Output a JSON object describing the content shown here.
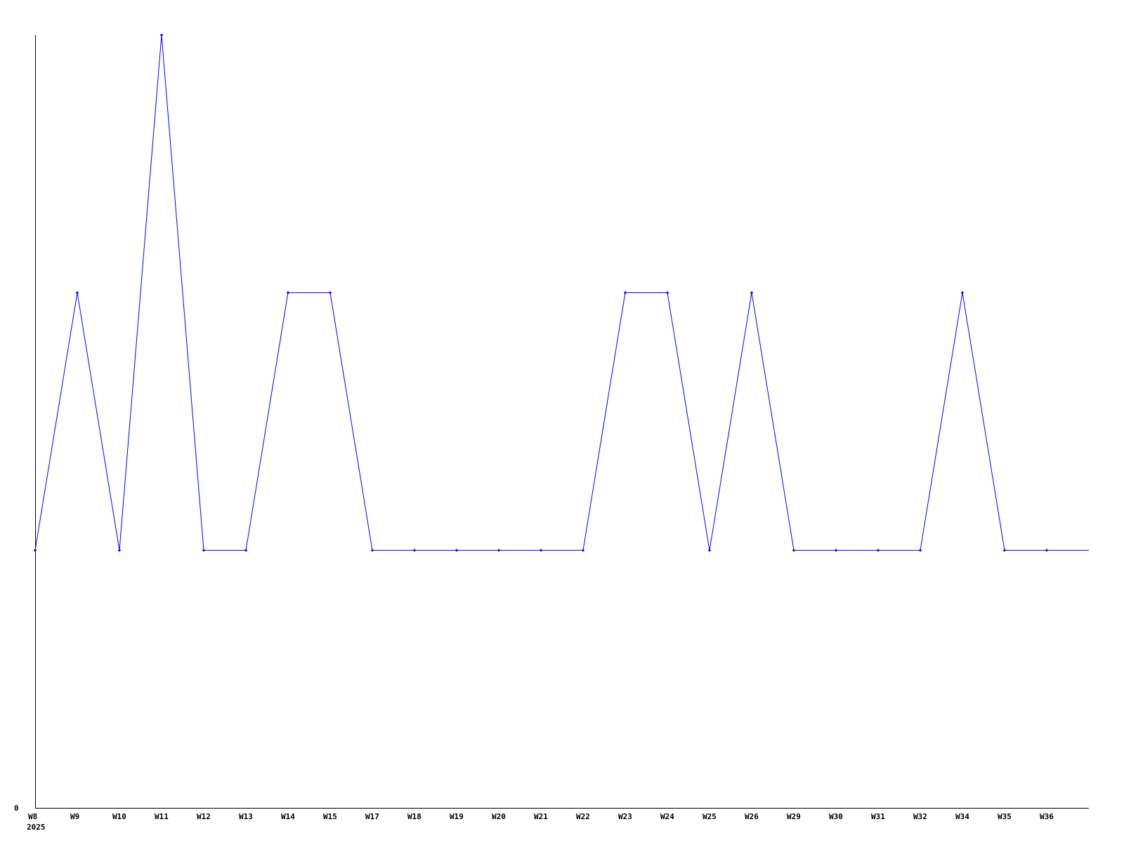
{
  "chart_data": {
    "type": "line",
    "categories": [
      "W8",
      "W9",
      "W10",
      "W11",
      "W12",
      "W13",
      "W14",
      "W15",
      "W17",
      "W18",
      "W19",
      "W20",
      "W21",
      "W22",
      "W23",
      "W24",
      "W25",
      "W26",
      "W29",
      "W30",
      "W31",
      "W32",
      "W34",
      "W35",
      "W36"
    ],
    "values": [
      1,
      2,
      1,
      3,
      1,
      1,
      2,
      2,
      1,
      1,
      1,
      1,
      1,
      1,
      2,
      2,
      1,
      2,
      1,
      1,
      1,
      1,
      2,
      1,
      1
    ],
    "trailing_value": 1,
    "x_sublabel": "2025",
    "y_tick_labels": [
      "0"
    ],
    "ylim": [
      0,
      3
    ],
    "grid": false,
    "line_color": "#0000ff",
    "axis_color": "#000000"
  }
}
